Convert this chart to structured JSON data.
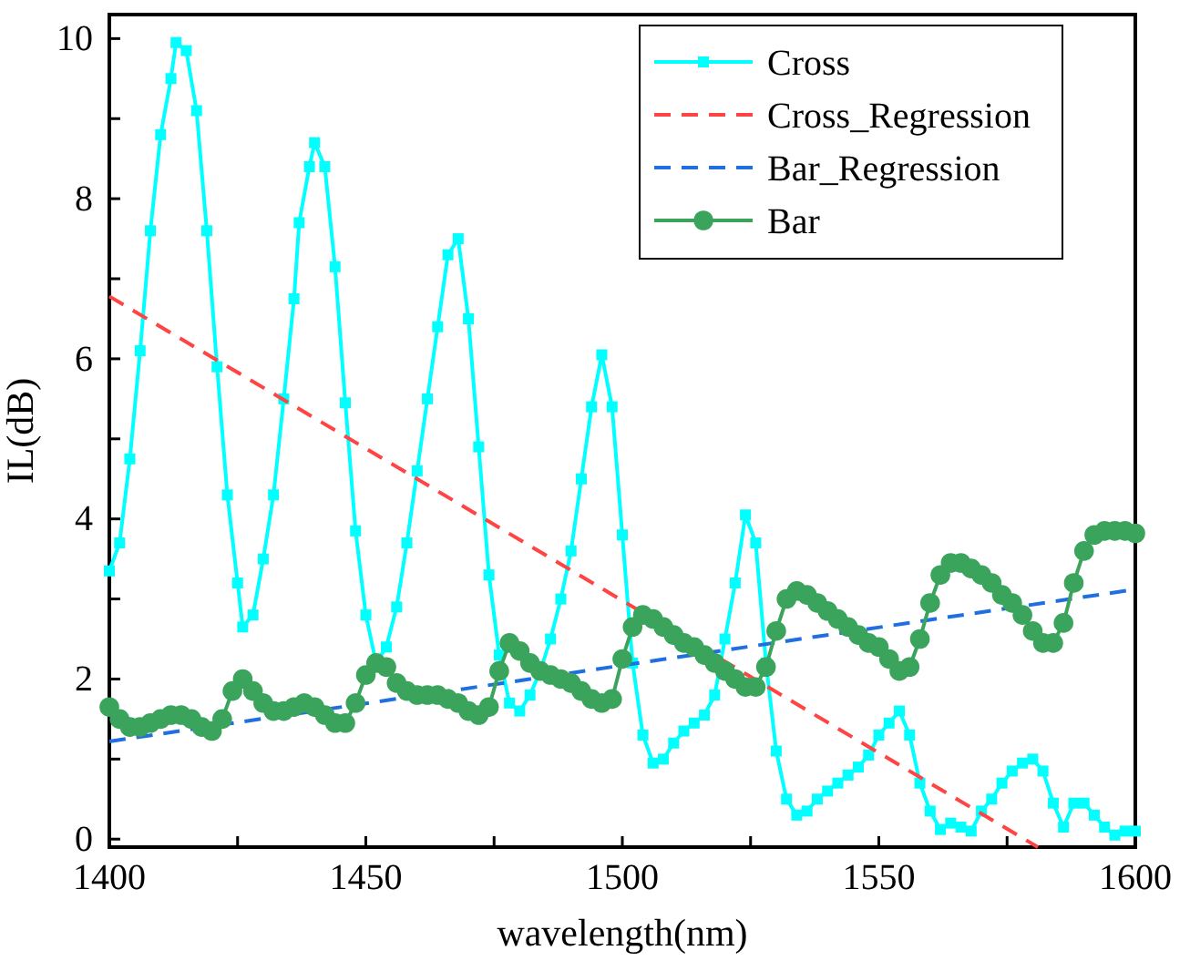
{
  "chart_data": {
    "type": "line",
    "xlabel": "wavelength(nm)",
    "ylabel": "IL(dB)",
    "xlim": [
      1400,
      1600
    ],
    "ylim": [
      -0.1,
      10.3
    ],
    "xticks": [
      1400,
      {
        "value": 1425,
        "label": null
      },
      1450,
      {
        "value": 1475,
        "label": null
      },
      1500,
      {
        "value": 1525,
        "label": null
      },
      1550,
      {
        "value": 1575,
        "label": null
      },
      1600
    ],
    "yticks": [
      0,
      {
        "value": 1,
        "label": null
      },
      2,
      {
        "value": 3,
        "label": null
      },
      4,
      {
        "value": 5,
        "label": null
      },
      6,
      {
        "value": 7,
        "label": null
      },
      8,
      {
        "value": 9,
        "label": null
      },
      10
    ],
    "legend": "top right",
    "grid": false,
    "series": [
      {
        "name": "Cross",
        "color": "#00ffff",
        "marker": "square",
        "line_style": "solid",
        "x": [
          1400,
          1402,
          1404,
          1406,
          1408,
          1410,
          1412,
          1413,
          1415,
          1417,
          1419,
          1421,
          1423,
          1425,
          1426,
          1428,
          1430,
          1432,
          1434,
          1436,
          1437,
          1439,
          1440,
          1442,
          1444,
          1446,
          1448,
          1450,
          1452,
          1454,
          1456,
          1458,
          1460,
          1462,
          1464,
          1466,
          1468,
          1470,
          1472,
          1474,
          1476,
          1478,
          1480,
          1482,
          1484,
          1486,
          1488,
          1490,
          1492,
          1494,
          1496,
          1498,
          1500,
          1502,
          1504,
          1506,
          1508,
          1510,
          1512,
          1514,
          1516,
          1518,
          1520,
          1522,
          1524,
          1526,
          1528,
          1530,
          1532,
          1534,
          1536,
          1538,
          1540,
          1542,
          1544,
          1546,
          1548,
          1550,
          1552,
          1554,
          1556,
          1558,
          1560,
          1562,
          1564,
          1566,
          1568,
          1570,
          1572,
          1574,
          1576,
          1578,
          1580,
          1582,
          1584,
          1586,
          1588,
          1590,
          1592,
          1594,
          1596,
          1598,
          1600
        ],
        "values": [
          3.35,
          3.7,
          4.75,
          6.1,
          7.6,
          8.8,
          9.5,
          9.95,
          9.85,
          9.1,
          7.6,
          5.9,
          4.3,
          3.2,
          2.65,
          2.8,
          3.5,
          4.3,
          5.5,
          6.75,
          7.7,
          8.4,
          8.7,
          8.4,
          7.15,
          5.45,
          3.85,
          2.8,
          2.2,
          2.4,
          2.9,
          3.7,
          4.6,
          5.5,
          6.4,
          7.3,
          7.5,
          6.5,
          4.9,
          3.3,
          2.3,
          1.7,
          1.6,
          1.8,
          2.1,
          2.5,
          3.0,
          3.6,
          4.5,
          5.4,
          6.05,
          5.4,
          3.8,
          2.2,
          1.3,
          0.95,
          1.0,
          1.2,
          1.35,
          1.45,
          1.55,
          1.8,
          2.5,
          3.2,
          4.05,
          3.7,
          2.2,
          1.1,
          0.5,
          0.3,
          0.35,
          0.5,
          0.6,
          0.7,
          0.8,
          0.9,
          1.05,
          1.3,
          1.45,
          1.6,
          1.3,
          0.7,
          0.35,
          0.12,
          0.2,
          0.15,
          0.1,
          0.35,
          0.5,
          0.7,
          0.85,
          0.95,
          1.0,
          0.85,
          0.45,
          0.15,
          0.45,
          0.45,
          0.3,
          0.15,
          0.05,
          0.1,
          0.1
        ]
      },
      {
        "name": "Cross_Regression",
        "color": "#ff4444",
        "marker": "none",
        "line_style": "dashed",
        "x": [
          1400,
          1581
        ],
        "values": [
          6.78,
          -0.1
        ]
      },
      {
        "name": "Bar_Regression",
        "color": "#1f6fe0",
        "marker": "none",
        "line_style": "dashed",
        "x": [
          1400,
          1600
        ],
        "values": [
          1.22,
          3.12
        ]
      },
      {
        "name": "Bar",
        "color": "#3aa35c",
        "marker": "circle",
        "line_style": "solid",
        "x": [
          1400,
          1402,
          1404,
          1406,
          1408,
          1410,
          1412,
          1414,
          1416,
          1418,
          1420,
          1422,
          1424,
          1426,
          1428,
          1430,
          1432,
          1434,
          1436,
          1438,
          1440,
          1442,
          1444,
          1446,
          1448,
          1450,
          1452,
          1454,
          1456,
          1458,
          1460,
          1462,
          1464,
          1466,
          1468,
          1470,
          1472,
          1474,
          1476,
          1478,
          1480,
          1482,
          1484,
          1486,
          1488,
          1490,
          1492,
          1494,
          1496,
          1498,
          1500,
          1502,
          1504,
          1506,
          1508,
          1510,
          1512,
          1514,
          1516,
          1518,
          1520,
          1522,
          1524,
          1526,
          1528,
          1530,
          1532,
          1534,
          1536,
          1538,
          1540,
          1542,
          1544,
          1546,
          1548,
          1550,
          1552,
          1554,
          1556,
          1558,
          1560,
          1562,
          1564,
          1566,
          1568,
          1570,
          1572,
          1574,
          1576,
          1578,
          1580,
          1582,
          1584,
          1586,
          1588,
          1590,
          1592,
          1594,
          1596,
          1598,
          1600
        ],
        "values": [
          1.65,
          1.5,
          1.4,
          1.4,
          1.45,
          1.5,
          1.55,
          1.55,
          1.5,
          1.4,
          1.35,
          1.5,
          1.85,
          2.0,
          1.85,
          1.7,
          1.6,
          1.6,
          1.65,
          1.7,
          1.65,
          1.55,
          1.45,
          1.45,
          1.7,
          2.05,
          2.2,
          2.15,
          1.95,
          1.85,
          1.8,
          1.8,
          1.8,
          1.75,
          1.7,
          1.6,
          1.55,
          1.65,
          2.1,
          2.45,
          2.35,
          2.2,
          2.1,
          2.05,
          2.0,
          1.95,
          1.85,
          1.75,
          1.7,
          1.75,
          2.25,
          2.65,
          2.8,
          2.75,
          2.65,
          2.55,
          2.45,
          2.4,
          2.3,
          2.2,
          2.1,
          2.0,
          1.9,
          1.9,
          2.15,
          2.6,
          3.0,
          3.1,
          3.05,
          2.95,
          2.85,
          2.75,
          2.65,
          2.55,
          2.45,
          2.4,
          2.25,
          2.1,
          2.15,
          2.5,
          2.95,
          3.3,
          3.45,
          3.45,
          3.38,
          3.3,
          3.2,
          3.05,
          2.95,
          2.8,
          2.6,
          2.45,
          2.45,
          2.7,
          3.2,
          3.6,
          3.8,
          3.85,
          3.85,
          3.85,
          3.82
        ]
      }
    ]
  }
}
